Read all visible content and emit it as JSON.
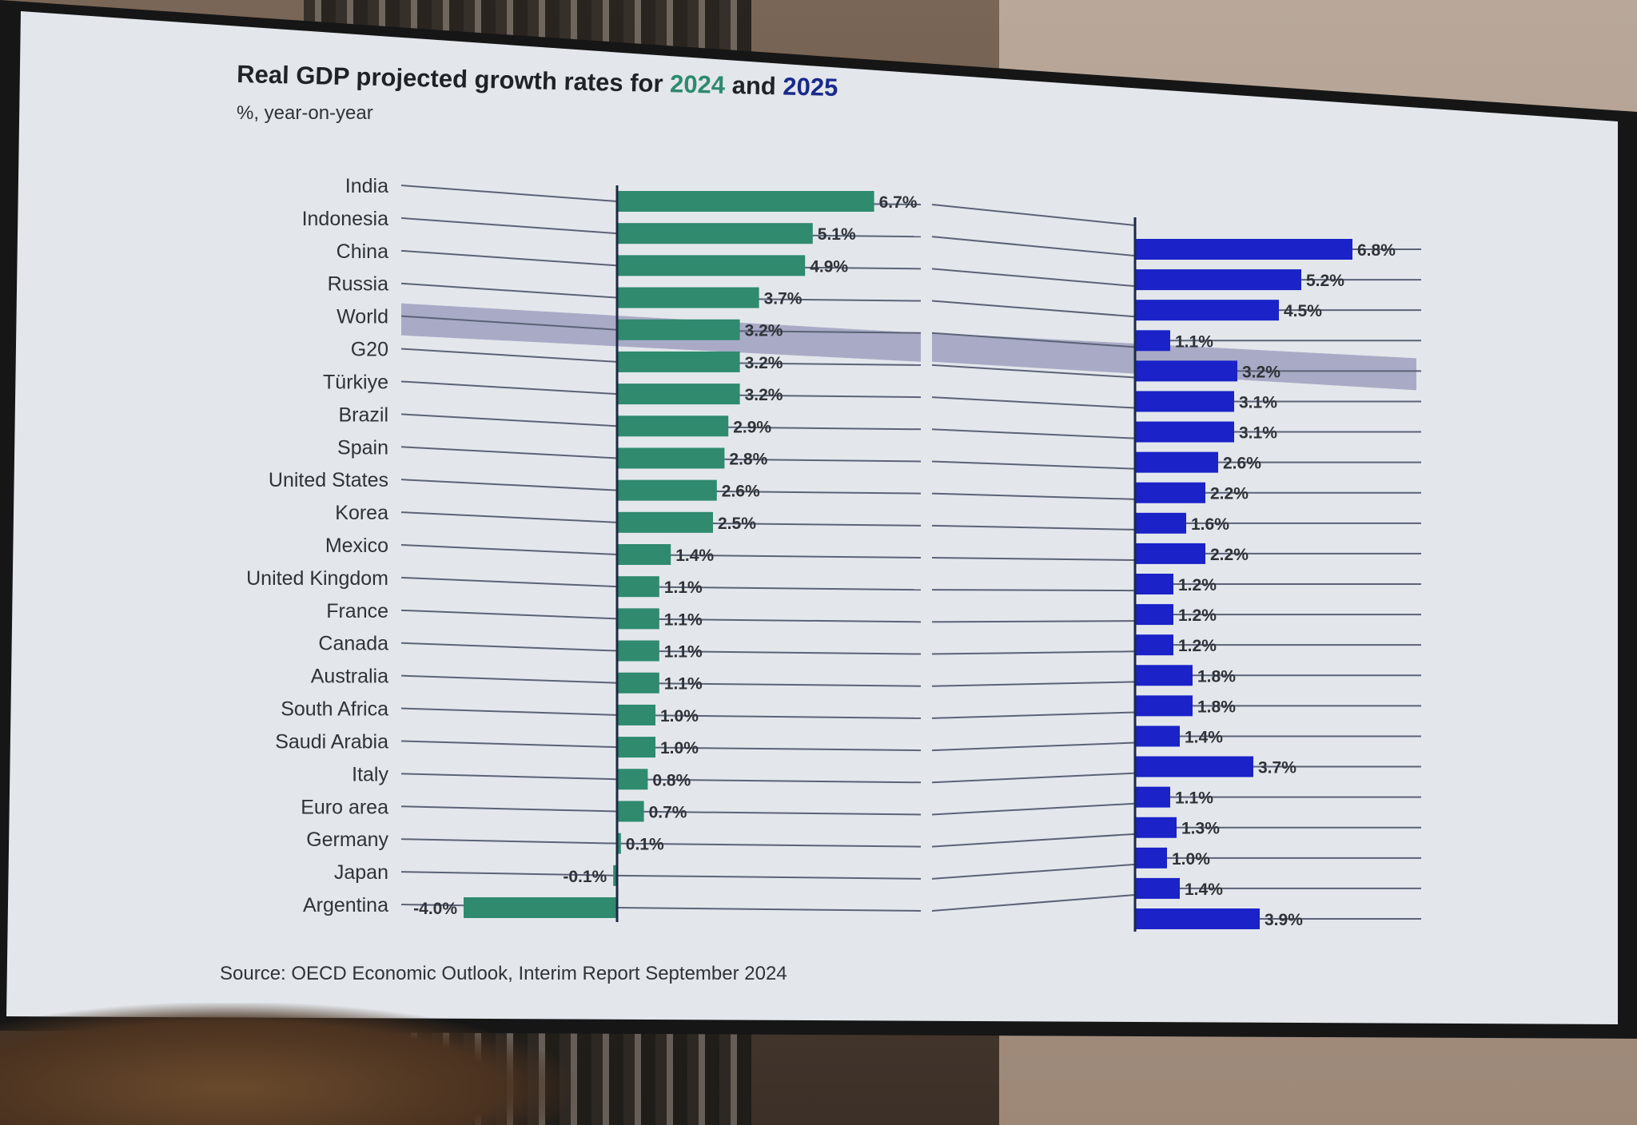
{
  "chart_data": {
    "type": "bar",
    "title_prefix": "Real GDP projected growth rates for ",
    "title_year1": "2024",
    "title_and": " and ",
    "title_year2": "2025",
    "subtitle": "%, year-on-year",
    "source": "Source: OECD Economic Outlook, Interim Report September 2024",
    "highlight": "World",
    "categories": [
      "India",
      "Indonesia",
      "China",
      "Russia",
      "World",
      "G20",
      "Türkiye",
      "Brazil",
      "Spain",
      "United States",
      "Korea",
      "Mexico",
      "United Kingdom",
      "France",
      "Canada",
      "Australia",
      "South Africa",
      "Saudi Arabia",
      "Italy",
      "Euro area",
      "Germany",
      "Japan",
      "Argentina"
    ],
    "series": [
      {
        "name": "2024",
        "color": "#2f8a6e",
        "values": [
          6.7,
          5.1,
          4.9,
          3.7,
          3.2,
          3.2,
          3.2,
          2.9,
          2.8,
          2.6,
          2.5,
          1.4,
          1.1,
          1.1,
          1.1,
          1.1,
          1.0,
          1.0,
          0.8,
          0.7,
          0.1,
          -0.1,
          -4.0
        ],
        "labels": [
          "6.7%",
          "5.1%",
          "4.9%",
          "3.7%",
          "3.2%",
          "3.2%",
          "3.2%",
          "2.9%",
          "2.8%",
          "2.6%",
          "2.5%",
          "1.4%",
          "1.1%",
          "1.1%",
          "1.1%",
          "1.1%",
          "1.0%",
          "1.0%",
          "0.8%",
          "0.7%",
          "0.1%",
          "-0.1%",
          "-4.0%"
        ]
      },
      {
        "name": "2025",
        "color": "#1a22c8",
        "values": [
          6.8,
          5.2,
          4.5,
          1.1,
          3.2,
          3.1,
          3.1,
          2.6,
          2.2,
          1.6,
          2.2,
          1.2,
          1.2,
          1.2,
          1.8,
          1.8,
          1.4,
          3.7,
          1.1,
          1.3,
          1.0,
          1.4,
          3.9
        ],
        "labels": [
          "6.8%",
          "5.2%",
          "4.5%",
          "1.1%",
          "3.2%",
          "3.1%",
          "3.1%",
          "2.6%",
          "2.2%",
          "1.6%",
          "2.2%",
          "1.2%",
          "1.2%",
          "1.2%",
          "1.8%",
          "1.8%",
          "1.4%",
          "3.7%",
          "1.1%",
          "1.3%",
          "1.0%",
          "1.4%",
          "3.9%"
        ]
      }
    ],
    "colors": {
      "title_2024": "#2f8a6e",
      "title_2025": "#1a2a8a",
      "highlight_band": "#a9abc6",
      "guide_line": "#5b6276"
    }
  }
}
